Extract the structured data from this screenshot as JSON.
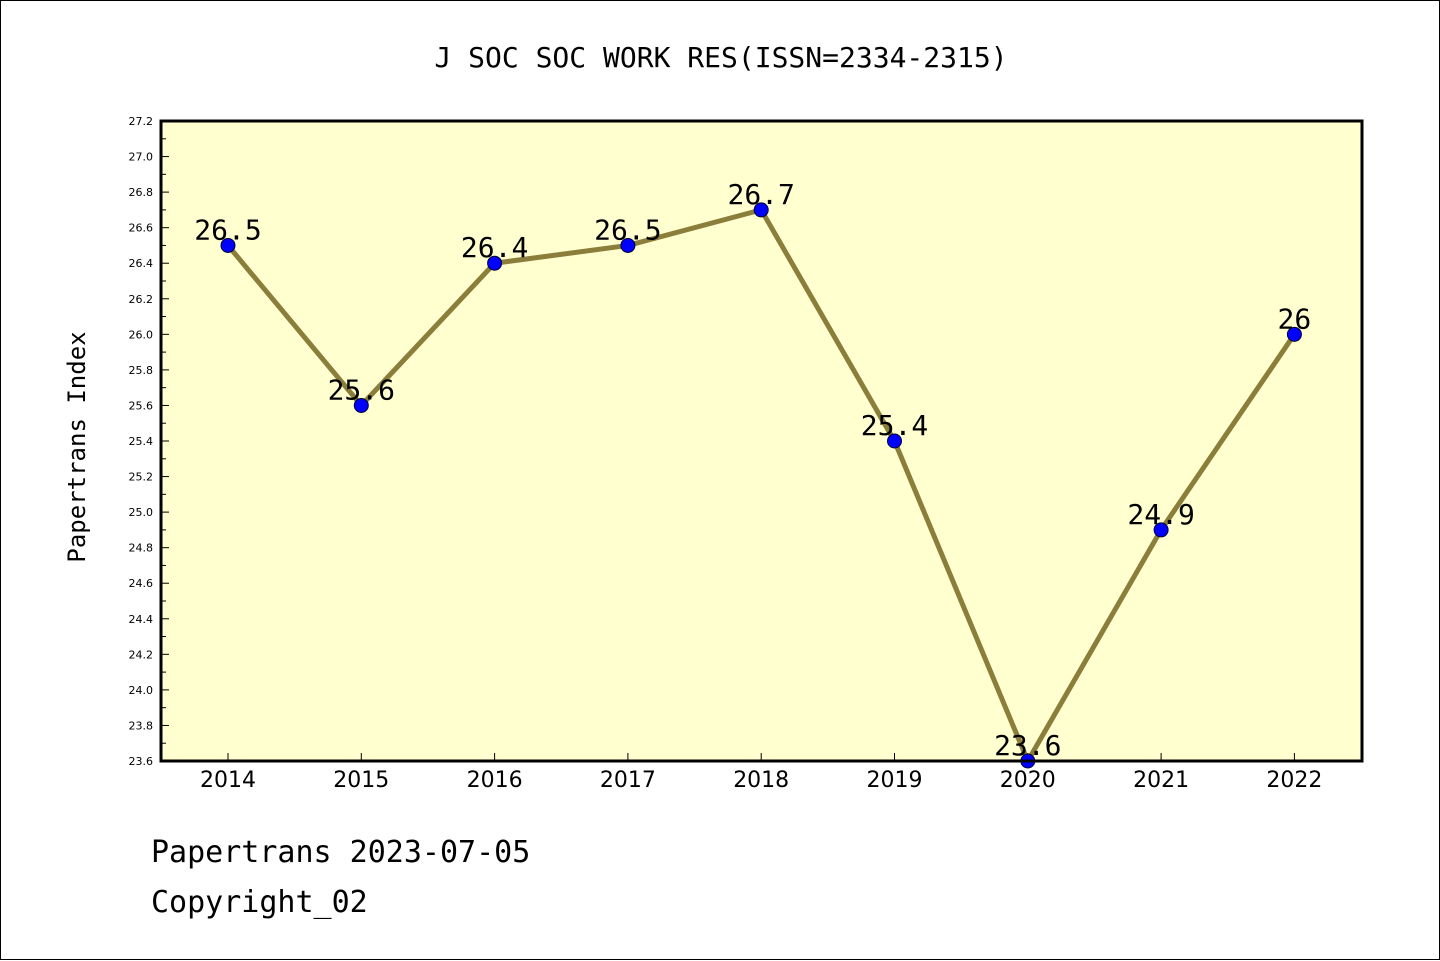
{
  "chart_data": {
    "type": "line",
    "title": "J SOC SOC WORK RES(ISSN=2334-2315)",
    "xlabel": "",
    "ylabel": "Papertrans Index",
    "categories": [
      "2014",
      "2015",
      "2016",
      "2017",
      "2018",
      "2019",
      "2020",
      "2021",
      "2022"
    ],
    "values": [
      26.5,
      25.6,
      26.4,
      26.5,
      26.7,
      25.4,
      23.6,
      24.9,
      26
    ],
    "data_labels": [
      "26.5",
      "25.6",
      "26.4",
      "26.5",
      "26.7",
      "25.4",
      "23.6",
      "24.9",
      "26"
    ],
    "ylim": [
      23.6,
      27.2
    ],
    "yticks": [
      "23.6",
      "23.8",
      "24.0",
      "24.2",
      "24.4",
      "24.6",
      "24.8",
      "25.0",
      "25.2",
      "25.4",
      "25.6",
      "25.8",
      "26.0",
      "26.2",
      "26.4",
      "26.6",
      "26.8",
      "27.0",
      "27.2"
    ],
    "grid": false,
    "colors": {
      "plot_background": "#ffffd0",
      "line": "#8b7d3a",
      "marker": "#0000ff",
      "axis": "#000000"
    }
  },
  "footer": {
    "date_line": "Papertrans 2023-07-05",
    "copyright_line": "Copyright_02"
  }
}
